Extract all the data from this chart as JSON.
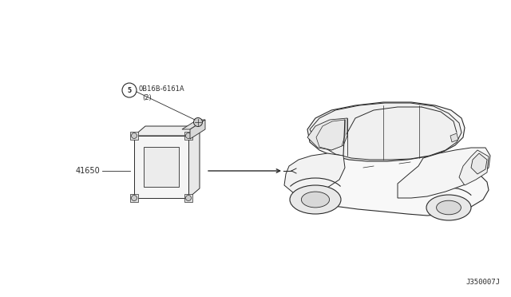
{
  "bg_color": "#ffffff",
  "line_color": "#2a2a2a",
  "text_color": "#2a2a2a",
  "part_label_08": "0B16B-6161A",
  "part_label_08_sub": "(2)",
  "part_circle_num": "5",
  "part_label_41650": "41650",
  "diagram_ref": "J350007J"
}
